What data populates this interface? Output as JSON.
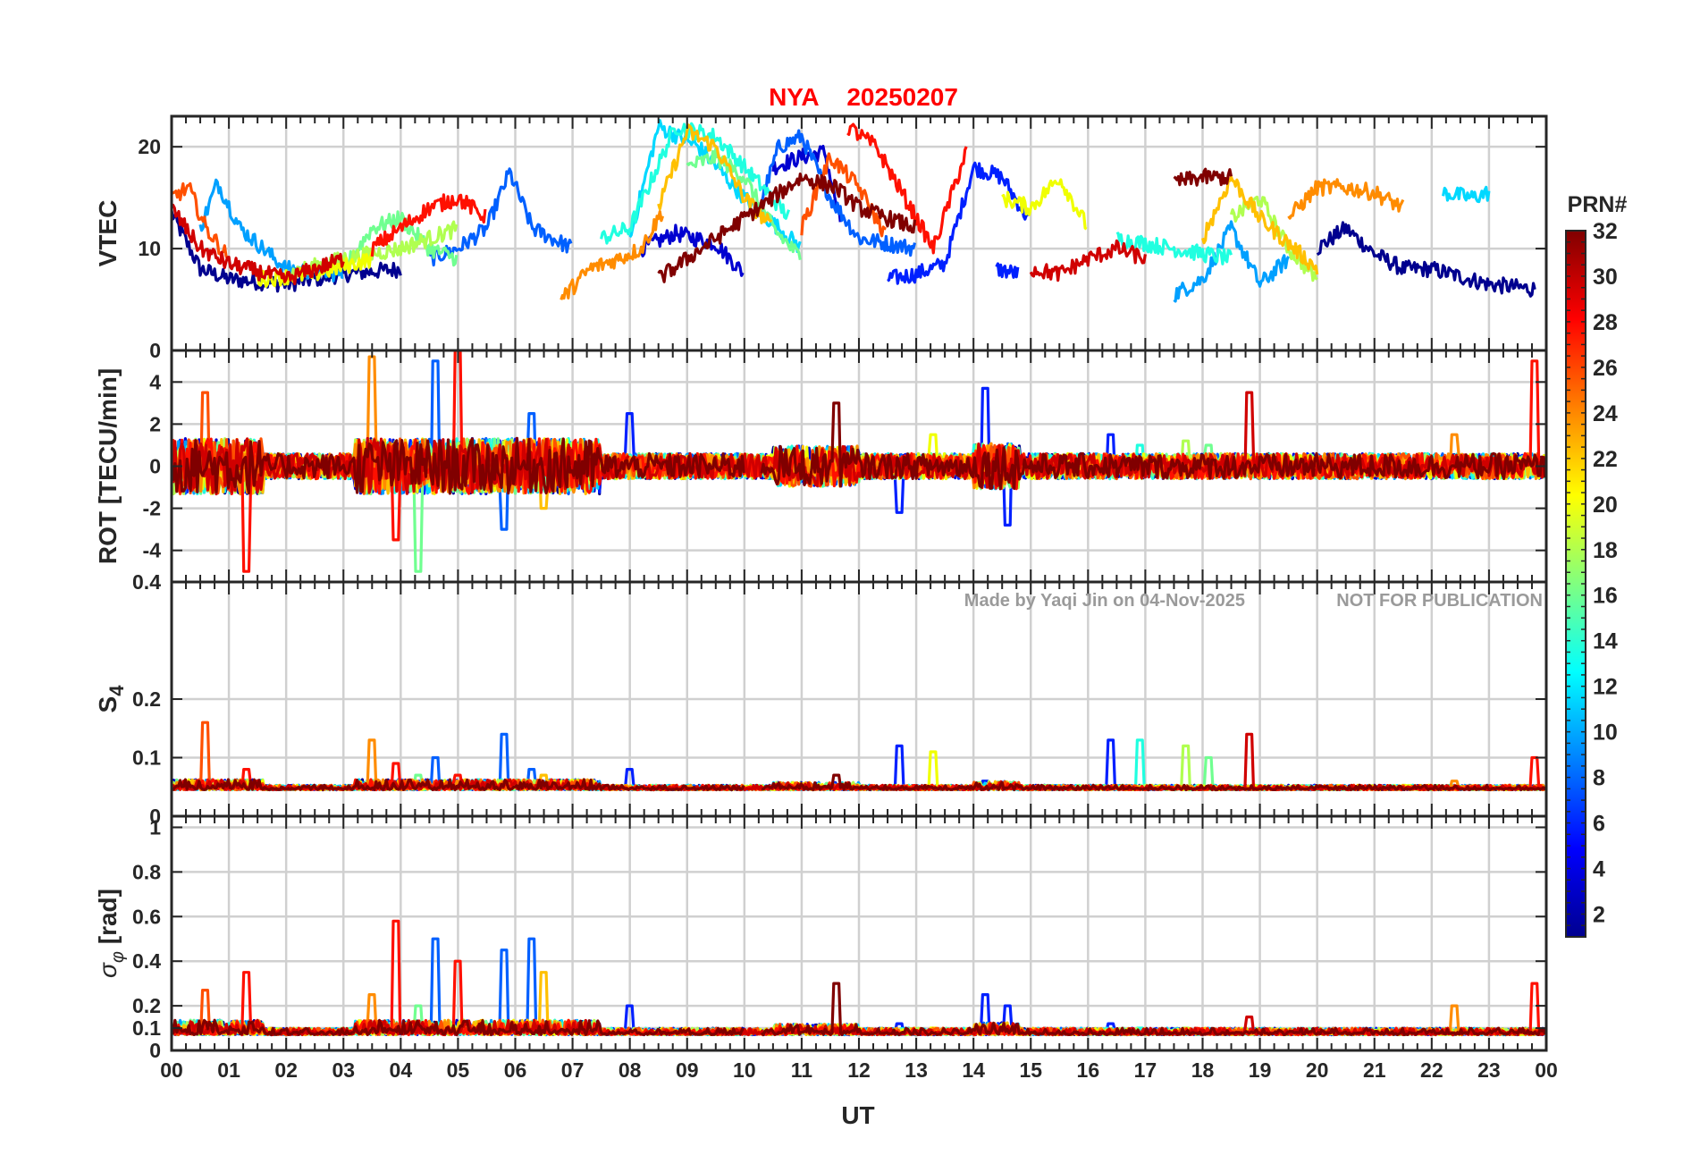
{
  "chart_data": {
    "type": "line",
    "title": {
      "station": "NYA",
      "date": "20250207"
    },
    "watermark": {
      "author": "Made by Yaqi Jin on 04-Nov-2025",
      "notice": "NOT FOR PUBLICATION"
    },
    "x_axis": {
      "label": "UT",
      "range": [
        0,
        24
      ],
      "ticks": [
        0,
        1,
        2,
        3,
        4,
        5,
        6,
        7,
        8,
        9,
        10,
        11,
        12,
        13,
        14,
        15,
        16,
        17,
        18,
        19,
        20,
        21,
        22,
        23,
        24
      ],
      "tick_labels": [
        "00",
        "01",
        "02",
        "03",
        "04",
        "05",
        "06",
        "07",
        "08",
        "09",
        "10",
        "11",
        "12",
        "13",
        "14",
        "15",
        "16",
        "17",
        "18",
        "19",
        "20",
        "21",
        "22",
        "23",
        "00"
      ]
    },
    "panels": [
      {
        "id": "vtec",
        "ylabel": "VTEC",
        "ylim": [
          0,
          23
        ],
        "yticks": [
          0,
          10,
          20
        ],
        "ytick_labels": [
          "0",
          "10",
          "20"
        ],
        "grid": [
          10,
          20
        ],
        "baseline": 8.5,
        "noise": 1.2,
        "minor_ticks": 2
      },
      {
        "id": "rot",
        "ylabel": "ROT [TECU/min]",
        "ylim": [
          -5.5,
          5.5
        ],
        "yticks": [
          -4,
          -2,
          0,
          2,
          4
        ],
        "ytick_labels": [
          "-4",
          "-2",
          "0",
          "2",
          "4"
        ],
        "grid": [
          -4,
          -2,
          0,
          2,
          4
        ],
        "baseline": 0,
        "noise": 0.6,
        "minor_ticks": 2
      },
      {
        "id": "s4",
        "ylabel": "S4",
        "ylabel_sub": "4",
        "ylim": [
          0,
          0.4
        ],
        "yticks": [
          0,
          0.1,
          0.2,
          0.4
        ],
        "ytick_labels": [
          "0",
          "0.1",
          "0.2",
          "0.4"
        ],
        "grid": [
          0.1,
          0.2
        ],
        "baseline": 0.045,
        "noise": 0.008,
        "minor_ticks": 2
      },
      {
        "id": "sigma",
        "ylabel": "σ",
        "ylabel_sub": "φ",
        "ylabel_unit": " [rad]",
        "ylim": [
          0,
          1.05
        ],
        "yticks": [
          0,
          0.1,
          0.2,
          0.4,
          0.6,
          0.8,
          1
        ],
        "ytick_labels": [
          "0",
          "0.1",
          "0.2",
          "0.4",
          "0.6",
          "0.8",
          "1"
        ],
        "grid": [
          0.1,
          0.2,
          0.4,
          0.6,
          0.8,
          1
        ],
        "baseline": 0.07,
        "noise": 0.03,
        "minor_ticks": 2
      }
    ],
    "series": [
      {
        "prn": 2,
        "color": "#00008f",
        "vtec": [
          [
            0,
            13.5
          ],
          [
            0.5,
            8
          ],
          [
            1,
            7
          ],
          [
            2,
            6.5
          ],
          [
            3,
            7.5
          ],
          [
            4,
            8
          ]
        ],
        "vtec2": [
          [
            20.0,
            10
          ],
          [
            20.5,
            12
          ],
          [
            21,
            9.5
          ],
          [
            21.5,
            8
          ],
          [
            22,
            8
          ],
          [
            23,
            6.5
          ],
          [
            23.8,
            6
          ]
        ]
      },
      {
        "prn": 4,
        "color": "#0000d0",
        "vtec": [
          [
            8.2,
            10
          ],
          [
            8.8,
            11.5
          ],
          [
            9.5,
            10.5
          ],
          [
            10,
            7.5
          ]
        ],
        "vtec2": [
          [
            10.5,
            18
          ],
          [
            11,
            19
          ],
          [
            11.4,
            19.5
          ],
          [
            11.7,
            12
          ]
        ]
      },
      {
        "prn": 6,
        "color": "#0020ff",
        "vtec": [
          [
            12.5,
            7
          ],
          [
            13,
            7.5
          ],
          [
            13.5,
            8.5
          ],
          [
            14,
            18
          ],
          [
            14.5,
            17
          ],
          [
            15,
            12.5
          ]
        ],
        "vtec2": [
          [
            14.4,
            8
          ],
          [
            14.8,
            7.5
          ]
        ]
      },
      {
        "prn": 8,
        "color": "#0060ff",
        "vtec": [
          [
            4.5,
            9
          ],
          [
            5,
            10
          ],
          [
            5.5,
            12
          ],
          [
            5.9,
            17.5
          ],
          [
            6.3,
            12
          ],
          [
            7,
            10
          ]
        ],
        "vtec2": [
          [
            10.2,
            13
          ],
          [
            10.6,
            20
          ],
          [
            11,
            21
          ],
          [
            11.5,
            15
          ],
          [
            12,
            11
          ],
          [
            13,
            10
          ]
        ]
      },
      {
        "prn": 10,
        "color": "#00a0ff",
        "vtec": [
          [
            0.5,
            12
          ],
          [
            0.8,
            16.5
          ],
          [
            1.2,
            12
          ],
          [
            2,
            8
          ],
          [
            3,
            7.5
          ]
        ],
        "vtec2": [
          [
            17.5,
            5.5
          ],
          [
            18,
            7
          ],
          [
            18.5,
            12
          ],
          [
            19,
            6.5
          ],
          [
            19.5,
            9
          ]
        ]
      },
      {
        "prn": 12,
        "color": "#00d8ff",
        "vtec": [
          [
            8.0,
            11
          ],
          [
            8.5,
            22
          ],
          [
            9.2,
            20
          ],
          [
            10,
            15
          ],
          [
            11,
            10
          ]
        ],
        "vtec2": [
          [
            22.2,
            15.5
          ],
          [
            22.7,
            15
          ],
          [
            23,
            15.5
          ]
        ]
      },
      {
        "prn": 14,
        "color": "#20ffe0",
        "vtec": [
          [
            7.5,
            11
          ],
          [
            8,
            12
          ],
          [
            8.8,
            22
          ],
          [
            9.5,
            21
          ],
          [
            10,
            18
          ],
          [
            10.8,
            13
          ]
        ],
        "vtec2": [
          [
            16.5,
            11
          ],
          [
            17.5,
            10
          ],
          [
            18.5,
            9
          ]
        ]
      },
      {
        "prn": 16,
        "color": "#70ff90",
        "vtec": [
          [
            3,
            8
          ],
          [
            3.5,
            12
          ],
          [
            4,
            13
          ],
          [
            4.5,
            10
          ],
          [
            5,
            9
          ]
        ],
        "vtec2": [
          [
            9,
            18
          ],
          [
            9.5,
            19
          ],
          [
            10,
            17
          ],
          [
            10.5,
            12
          ],
          [
            11,
            9
          ]
        ]
      },
      {
        "prn": 18,
        "color": "#b0ff50",
        "vtec": [
          [
            2,
            7.5
          ],
          [
            3,
            9
          ],
          [
            4,
            10
          ],
          [
            5,
            12
          ]
        ],
        "vtec2": [
          [
            18.5,
            13
          ],
          [
            19,
            15
          ],
          [
            19.5,
            10
          ],
          [
            20,
            7
          ]
        ]
      },
      {
        "prn": 20,
        "color": "#f0ff00",
        "vtec": [
          [
            1.5,
            7
          ],
          [
            2.5,
            7.5
          ],
          [
            3.5,
            9
          ]
        ],
        "vtec2": [
          [
            14.5,
            15
          ],
          [
            15,
            14
          ],
          [
            15.5,
            17
          ],
          [
            16,
            12
          ]
        ]
      },
      {
        "prn": 22,
        "color": "#ffc000",
        "vtec": [
          [
            8.5,
            14
          ],
          [
            9,
            21.5
          ],
          [
            9.5,
            20
          ],
          [
            10,
            15
          ],
          [
            10.5,
            12
          ]
        ],
        "vtec2": [
          [
            18,
            11
          ],
          [
            18.5,
            17
          ],
          [
            19,
            13
          ],
          [
            20,
            8
          ]
        ]
      },
      {
        "prn": 24,
        "color": "#ff8c00",
        "vtec": [
          [
            6.8,
            5
          ],
          [
            7.3,
            8
          ],
          [
            7.8,
            9
          ],
          [
            8.2,
            10
          ],
          [
            8.6,
            14
          ]
        ],
        "vtec2": [
          [
            19.5,
            13
          ],
          [
            20,
            16
          ],
          [
            20.5,
            16
          ],
          [
            21,
            15.5
          ],
          [
            21.5,
            14
          ]
        ]
      },
      {
        "prn": 26,
        "color": "#ff5000",
        "vtec": [
          [
            0,
            15
          ],
          [
            0.3,
            16
          ],
          [
            0.6,
            12
          ],
          [
            1,
            9
          ]
        ],
        "vtec2": [
          [
            11,
            12
          ],
          [
            11.5,
            19
          ],
          [
            12,
            16
          ],
          [
            12.5,
            11
          ]
        ]
      },
      {
        "prn": 28,
        "color": "#ff1000",
        "vtec": [
          [
            3.5,
            10
          ],
          [
            4,
            12
          ],
          [
            4.5,
            14
          ],
          [
            5,
            15
          ],
          [
            5.5,
            13
          ]
        ],
        "vtec2": [
          [
            11.8,
            22
          ],
          [
            12.3,
            20
          ],
          [
            12.8,
            15
          ],
          [
            13.3,
            10
          ],
          [
            13.9,
            20
          ]
        ]
      },
      {
        "prn": 30,
        "color": "#d00000",
        "vtec": [
          [
            0,
            14
          ],
          [
            0.5,
            10
          ],
          [
            1,
            8.5
          ],
          [
            2,
            7
          ],
          [
            3,
            9
          ]
        ],
        "vtec2": [
          [
            15,
            8
          ],
          [
            15.5,
            7.5
          ],
          [
            16,
            9
          ],
          [
            16.5,
            10
          ],
          [
            17,
            9
          ]
        ]
      },
      {
        "prn": 32,
        "color": "#800000",
        "vtec": [
          [
            8.5,
            7
          ],
          [
            9,
            9
          ],
          [
            10,
            13
          ],
          [
            11,
            17
          ],
          [
            11.6,
            16
          ],
          [
            12,
            14
          ],
          [
            13,
            12
          ]
        ],
        "vtec2": [
          [
            17.5,
            16.5
          ],
          [
            18,
            17
          ],
          [
            18.5,
            17
          ]
        ]
      }
    ],
    "colorbar": {
      "label": "PRN#",
      "range": [
        1,
        32
      ],
      "ticks": [
        2,
        4,
        6,
        8,
        10,
        12,
        14,
        16,
        18,
        20,
        22,
        24,
        26,
        28,
        30,
        32
      ],
      "tick_labels": [
        "2",
        "4",
        "6",
        "8",
        "10",
        "12",
        "14",
        "16",
        "18",
        "20",
        "22",
        "24",
        "26",
        "28",
        "30",
        "32"
      ],
      "colormap": [
        "#00008f",
        "#0000ff",
        "#0080ff",
        "#00ffff",
        "#80ff80",
        "#ffff00",
        "#ff8000",
        "#ff0000",
        "#800000"
      ]
    },
    "events": [
      {
        "t": 0.6,
        "prn": 26,
        "s4": 0.16,
        "sigma": 0.27,
        "rot": 3.5
      },
      {
        "t": 1.3,
        "prn": 28,
        "s4": 0.08,
        "sigma": 0.35,
        "rot": -5
      },
      {
        "t": 3.5,
        "prn": 24,
        "s4": 0.13,
        "sigma": 0.25,
        "rot": 5.2
      },
      {
        "t": 3.9,
        "prn": 28,
        "s4": 0.09,
        "sigma": 0.58,
        "rot": -3.5
      },
      {
        "t": 4.3,
        "prn": 16,
        "s4": 0.07,
        "sigma": 0.2,
        "rot": -5.0
      },
      {
        "t": 4.6,
        "prn": 8,
        "s4": 0.1,
        "sigma": 0.5,
        "rot": 5.0
      },
      {
        "t": 5.0,
        "prn": 28,
        "s4": 0.07,
        "sigma": 0.4,
        "rot": 5.5
      },
      {
        "t": 5.8,
        "prn": 8,
        "s4": 0.14,
        "sigma": 0.45,
        "rot": -3.0
      },
      {
        "t": 6.3,
        "prn": 8,
        "s4": 0.08,
        "sigma": 0.5,
        "rot": 2.5
      },
      {
        "t": 6.5,
        "prn": 22,
        "s4": 0.07,
        "sigma": 0.35,
        "rot": -2.0
      },
      {
        "t": 8.0,
        "prn": 6,
        "s4": 0.08,
        "sigma": 0.2,
        "rot": 2.5
      },
      {
        "t": 11.6,
        "prn": 32,
        "s4": 0.07,
        "sigma": 0.3,
        "rot": 3.0
      },
      {
        "t": 12.7,
        "prn": 6,
        "s4": 0.12,
        "sigma": 0.12,
        "rot": -2.2
      },
      {
        "t": 13.3,
        "prn": 20,
        "s4": 0.11,
        "sigma": 0.1,
        "rot": 1.5
      },
      {
        "t": 14.2,
        "prn": 6,
        "s4": 0.06,
        "sigma": 0.25,
        "rot": 3.7
      },
      {
        "t": 14.6,
        "prn": 6,
        "s4": 0.05,
        "sigma": 0.2,
        "rot": -2.8
      },
      {
        "t": 16.4,
        "prn": 6,
        "s4": 0.13,
        "sigma": 0.12,
        "rot": 1.5
      },
      {
        "t": 16.9,
        "prn": 14,
        "s4": 0.13,
        "sigma": 0.1,
        "rot": 1.0
      },
      {
        "t": 17.7,
        "prn": 18,
        "s4": 0.12,
        "sigma": 0.1,
        "rot": 1.2
      },
      {
        "t": 18.1,
        "prn": 16,
        "s4": 0.1,
        "sigma": 0.08,
        "rot": 1.0
      },
      {
        "t": 18.8,
        "prn": 30,
        "s4": 0.14,
        "sigma": 0.15,
        "rot": 3.5
      },
      {
        "t": 22.4,
        "prn": 24,
        "s4": 0.06,
        "sigma": 0.2,
        "rot": 1.5
      },
      {
        "t": 23.8,
        "prn": 28,
        "s4": 0.1,
        "sigma": 0.3,
        "rot": 5.0
      }
    ]
  }
}
